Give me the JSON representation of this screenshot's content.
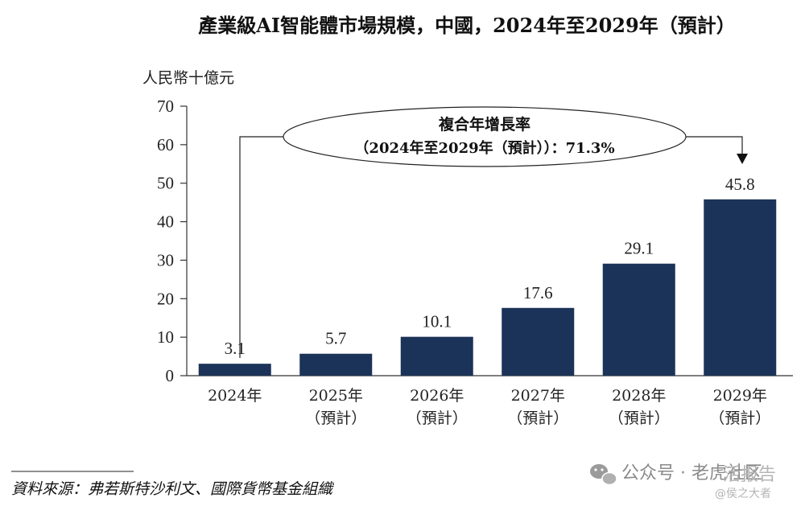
{
  "chart_data": {
    "type": "bar",
    "title": "產業級AI智能體市場規模，中國，2024年至2029年（預計）",
    "ylabel": "人民幣十億元",
    "xlabel": "",
    "ylim": [
      0,
      70
    ],
    "yticks": [
      0,
      10,
      20,
      30,
      40,
      50,
      60,
      70
    ],
    "categories": [
      [
        "2024年"
      ],
      [
        "2025年",
        "（預計）"
      ],
      [
        "2026年",
        "（預計）"
      ],
      [
        "2027年",
        "（預計）"
      ],
      [
        "2028年",
        "（預計）"
      ],
      [
        "2029年",
        "（預計）"
      ]
    ],
    "values": [
      3.1,
      5.7,
      10.1,
      17.6,
      29.1,
      45.8
    ],
    "value_labels": [
      "3.1",
      "5.7",
      "10.1",
      "17.6",
      "29.1",
      "45.8"
    ],
    "bar_color": "#1b3358",
    "annotation": {
      "line1": "複合年增長率",
      "line2": "（2024年至2029年（預計））：71.3%",
      "from_index": 0,
      "to_index": 5
    }
  },
  "footer": {
    "source": "資料來源：弗若斯特沙利文、國際貨幣基金組織"
  },
  "watermark": {
    "channel": "公众号 · 老虎社区",
    "tag": "活报告",
    "handle": "@侯之大者"
  }
}
